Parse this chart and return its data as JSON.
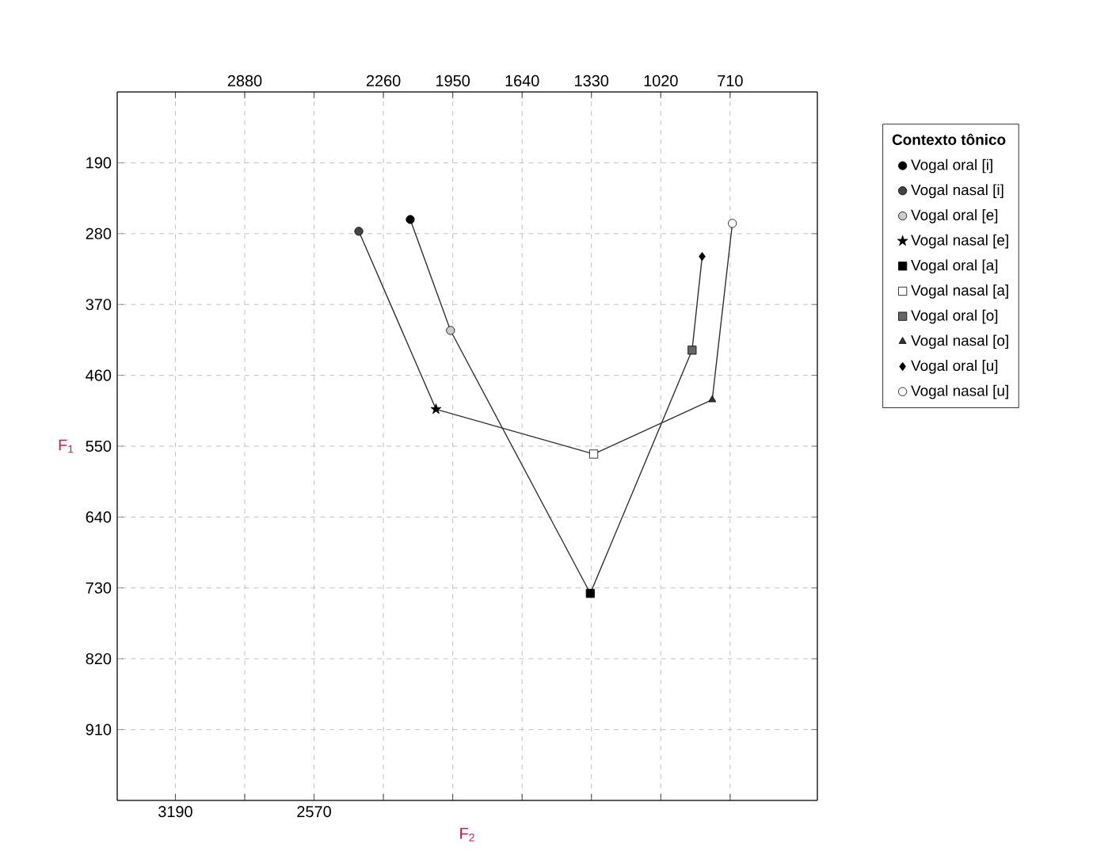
{
  "chart_data": {
    "type": "scatter",
    "xlabel": "F$_{2}$",
    "ylabel": "F$_{1}$",
    "legend_title": "Contexto tônico",
    "xlim": [
      3450,
      320
    ],
    "ylim": [
      1000,
      100
    ],
    "x2lim": [
      3450,
      320
    ],
    "xticks": [
      3190,
      {
        "value": 2880,
        "label": null
      },
      2570,
      {
        "value": 2260,
        "label": null
      },
      {
        "value": 1950,
        "label": null
      },
      {
        "value": 1640,
        "label": null
      },
      {
        "value": 1330,
        "label": null
      },
      {
        "value": 1020,
        "label": null
      },
      {
        "value": 710,
        "label": null
      }
    ],
    "x2ticks": [
      {
        "value": 3190,
        "label": null
      },
      2880,
      {
        "value": 2570,
        "label": null
      },
      2260,
      1950,
      1640,
      1330,
      1020,
      710
    ],
    "yticks": [
      190,
      280,
      370,
      460,
      550,
      640,
      730,
      820,
      910
    ],
    "grid": true,
    "legend": "right",
    "series": [
      {
        "name": "Vogal oral [i]",
        "marker": "circle",
        "color": "#000000",
        "x": [
          2140
        ],
        "values": [
          262
        ]
      },
      {
        "name": "Vogal nasal [i]",
        "marker": "circle",
        "color": "#444444",
        "x": [
          2370
        ],
        "values": [
          277
        ]
      },
      {
        "name": "Vogal oral [e]",
        "marker": "circle",
        "color": "#cccccc",
        "x": [
          1960
        ],
        "values": [
          403
        ]
      },
      {
        "name": "Vogal nasal [e]",
        "marker": "star",
        "color": "#000000",
        "x": [
          2025
        ],
        "values": [
          503
        ]
      },
      {
        "name": "Vogal oral [a]",
        "marker": "square",
        "color": "#000000",
        "x": [
          1335
        ],
        "values": [
          737
        ]
      },
      {
        "name": "Vogal nasal [a]",
        "marker": "square",
        "color": "#ffffff",
        "x": [
          1320
        ],
        "values": [
          560
        ]
      },
      {
        "name": "Vogal oral [o]",
        "marker": "square",
        "color": "#666666",
        "x": [
          880
        ],
        "values": [
          428
        ]
      },
      {
        "name": "Vogal nasal [o]",
        "marker": "triangle",
        "color": "#333333",
        "x": [
          790
        ],
        "values": [
          491
        ]
      },
      {
        "name": "Vogal oral [u]",
        "marker": "diamond",
        "color": "#000000",
        "x": [
          835
        ],
        "values": [
          309
        ]
      },
      {
        "name": "Vogal nasal [u]",
        "marker": "circle",
        "color": "#ffffff",
        "x": [
          700
        ],
        "values": [
          267
        ]
      },
      {
        "type": "line",
        "marker": "none",
        "color": "#333333",
        "x": [
          2370,
          2025,
          1320,
          790,
          700
        ],
        "values": [
          277,
          503,
          560,
          491,
          267
        ]
      },
      {
        "type": "line",
        "marker": "none",
        "color": "#333333",
        "x": [
          2140,
          1960,
          1335,
          880,
          835
        ],
        "values": [
          262,
          403,
          737,
          428,
          309
        ]
      }
    ]
  }
}
